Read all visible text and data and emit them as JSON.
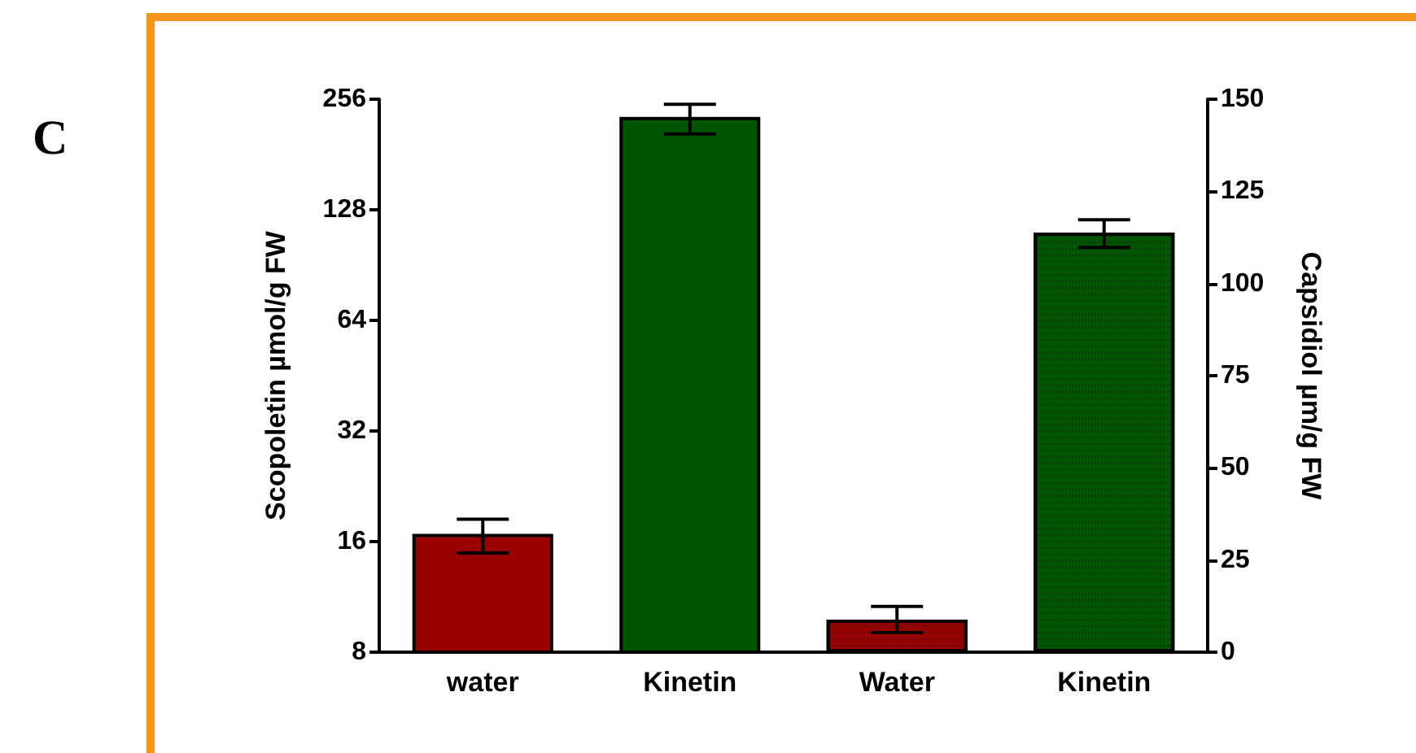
{
  "chart_data": {
    "type": "bar",
    "annotations": [
      "C"
    ],
    "ylabel": "Scopoletin µmol/g FW",
    "y2label": "Capsidiol µm/g FW",
    "categories": [
      "water",
      "Kinetin",
      "Water",
      "Kinetin"
    ],
    "series": [
      {
        "colors": [
          "#990000",
          "#005500",
          null,
          null
        ],
        "values": [
          16.8,
          229,
          null,
          null
        ],
        "errors": [
          [
            14.9,
            18.4
          ],
          [
            206,
            248
          ],
          null,
          null
        ]
      },
      {
        "axis": "y2",
        "colors": [
          null,
          null,
          "#990000",
          "#005500"
        ],
        "values": [
          null,
          null,
          8.8,
          113.8
        ],
        "errors": [
          null,
          null,
          [
            5.3,
            12.4
          ],
          [
            109.8,
            117.3
          ]
        ]
      }
    ],
    "log": "y",
    "ylim": [
      8,
      256
    ],
    "yticks": [
      8,
      16,
      32,
      64,
      128,
      256
    ],
    "y2lim": [
      0,
      150
    ],
    "y2ticks": [
      0,
      25,
      50,
      75,
      100,
      125,
      150
    ],
    "grid": false
  }
}
